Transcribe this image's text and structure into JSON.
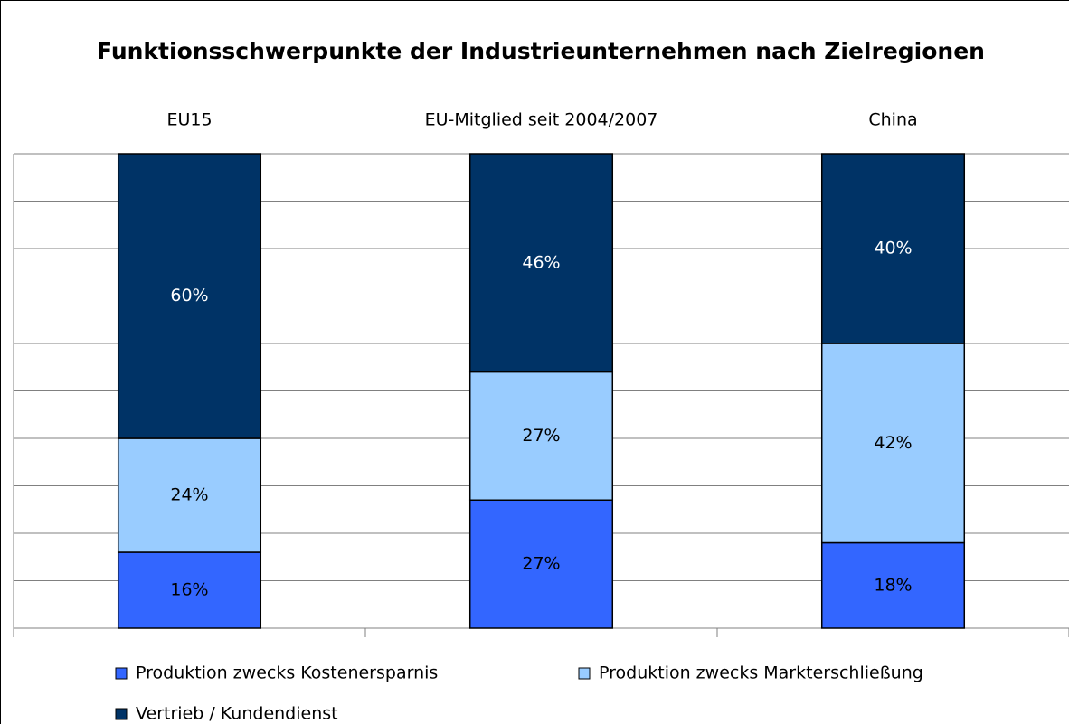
{
  "chart_data": {
    "type": "stacked_bar",
    "title": "Funktionsschwerpunkte der Industrieunternehmen nach Zielregionen",
    "categories": [
      "EU15",
      "EU-Mitglied seit 2004/2007",
      "China"
    ],
    "series": [
      {
        "name": "Produktion zwecks Kostenersparnis",
        "color": "#3366ff",
        "label_color": "#000000",
        "values": [
          16,
          27,
          18
        ],
        "value_labels": [
          "16%",
          "27%",
          "18%"
        ]
      },
      {
        "name": "Produktion zwecks Markterschließung",
        "color": "#99ccff",
        "label_color": "#000000",
        "values": [
          24,
          27,
          42
        ],
        "value_labels": [
          "24%",
          "27%",
          "42%"
        ]
      },
      {
        "name": "Vertrieb / Kundendienst",
        "color": "#003366",
        "label_color": "#ffffff",
        "values": [
          60,
          46,
          40
        ],
        "value_labels": [
          "60%",
          "46%",
          "40%"
        ]
      }
    ],
    "ylim": [
      0,
      100
    ],
    "yticks": [
      0,
      10,
      20,
      30,
      40,
      50,
      60,
      70,
      80,
      90,
      100
    ],
    "grid": true
  }
}
